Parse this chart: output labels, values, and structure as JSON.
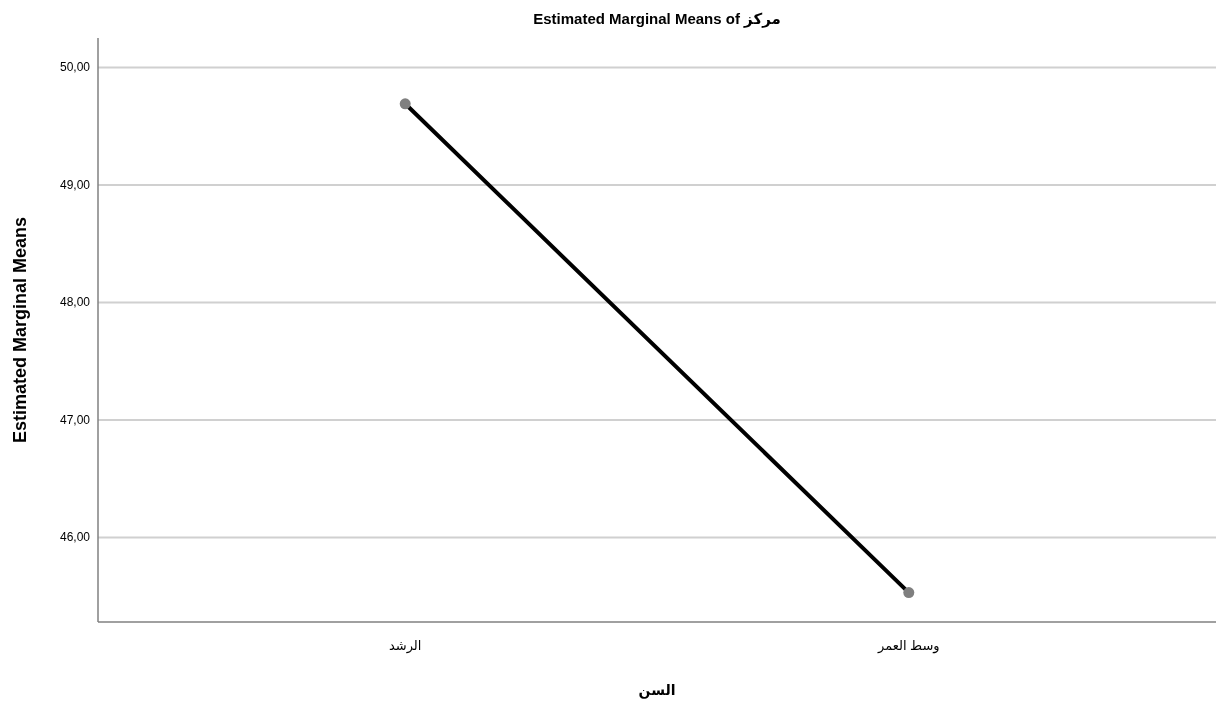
{
  "chart_data": {
    "type": "line",
    "title": "Estimated Marginal Means of مركز",
    "xlabel": "السن",
    "ylabel": "Estimated Marginal Means",
    "categories": [
      "الرشد",
      "وسط العمر"
    ],
    "series": [
      {
        "color": "#000000",
        "values": [
          49.69,
          45.53
        ]
      }
    ],
    "ylim": [
      45.28,
      50.25
    ],
    "yticks": [
      {
        "value": 46,
        "label": "46,00"
      },
      {
        "value": 47,
        "label": "47,00"
      },
      {
        "value": 48,
        "label": "48,00"
      },
      {
        "value": 49,
        "label": "49,00"
      },
      {
        "value": 50,
        "label": "50,00"
      }
    ],
    "grid": "y",
    "marker": "circle",
    "line_style": "solid"
  }
}
